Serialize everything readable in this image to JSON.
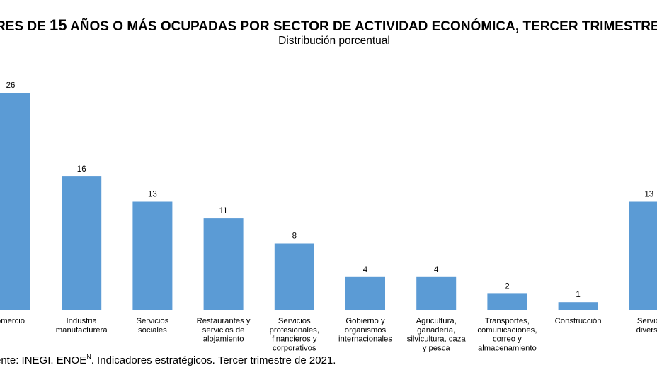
{
  "title": {
    "text_before": "RES DE ",
    "number": "15",
    "text_after": " AÑOS O MÁS OCUPADAS POR SECTOR DE ACTIVIDAD ECONÓMICA, TERCER TRIMESTRE"
  },
  "subtitle": "Distribución porcentual",
  "source": {
    "before": "ente: INEGI. ENOE",
    "superscript": "N",
    "after": ". Indicadores estratégicos. Tercer trimestre de 2021."
  },
  "chart_data": {
    "type": "bar",
    "bar_color": "#5b9bd5",
    "categories": [
      [
        "omercio"
      ],
      [
        "Industria",
        "manufacturera"
      ],
      [
        "Servicios",
        "sociales"
      ],
      [
        "Restaurantes y",
        "servicios de",
        "alojamiento"
      ],
      [
        "Servicios",
        "profesionales,",
        "financieros y",
        "corporativos"
      ],
      [
        "Gobierno y",
        "organismos",
        "internacionales"
      ],
      [
        "Agricultura,",
        "ganadería,",
        "silvicultura, caza",
        "y pesca"
      ],
      [
        "Transportes,",
        "comunicaciones,",
        "correo y",
        "almacenamiento"
      ],
      [
        "Construcción"
      ],
      [
        "Servici",
        "diverso"
      ]
    ],
    "values": [
      26,
      16,
      13,
      11,
      8,
      4,
      4,
      2,
      1,
      13
    ],
    "data_labels": [
      "26",
      "16",
      "13",
      "11",
      "8",
      "4",
      "4",
      "2",
      "1",
      "13"
    ],
    "ylim": [
      0,
      26
    ],
    "grid": false,
    "legend": false
  }
}
